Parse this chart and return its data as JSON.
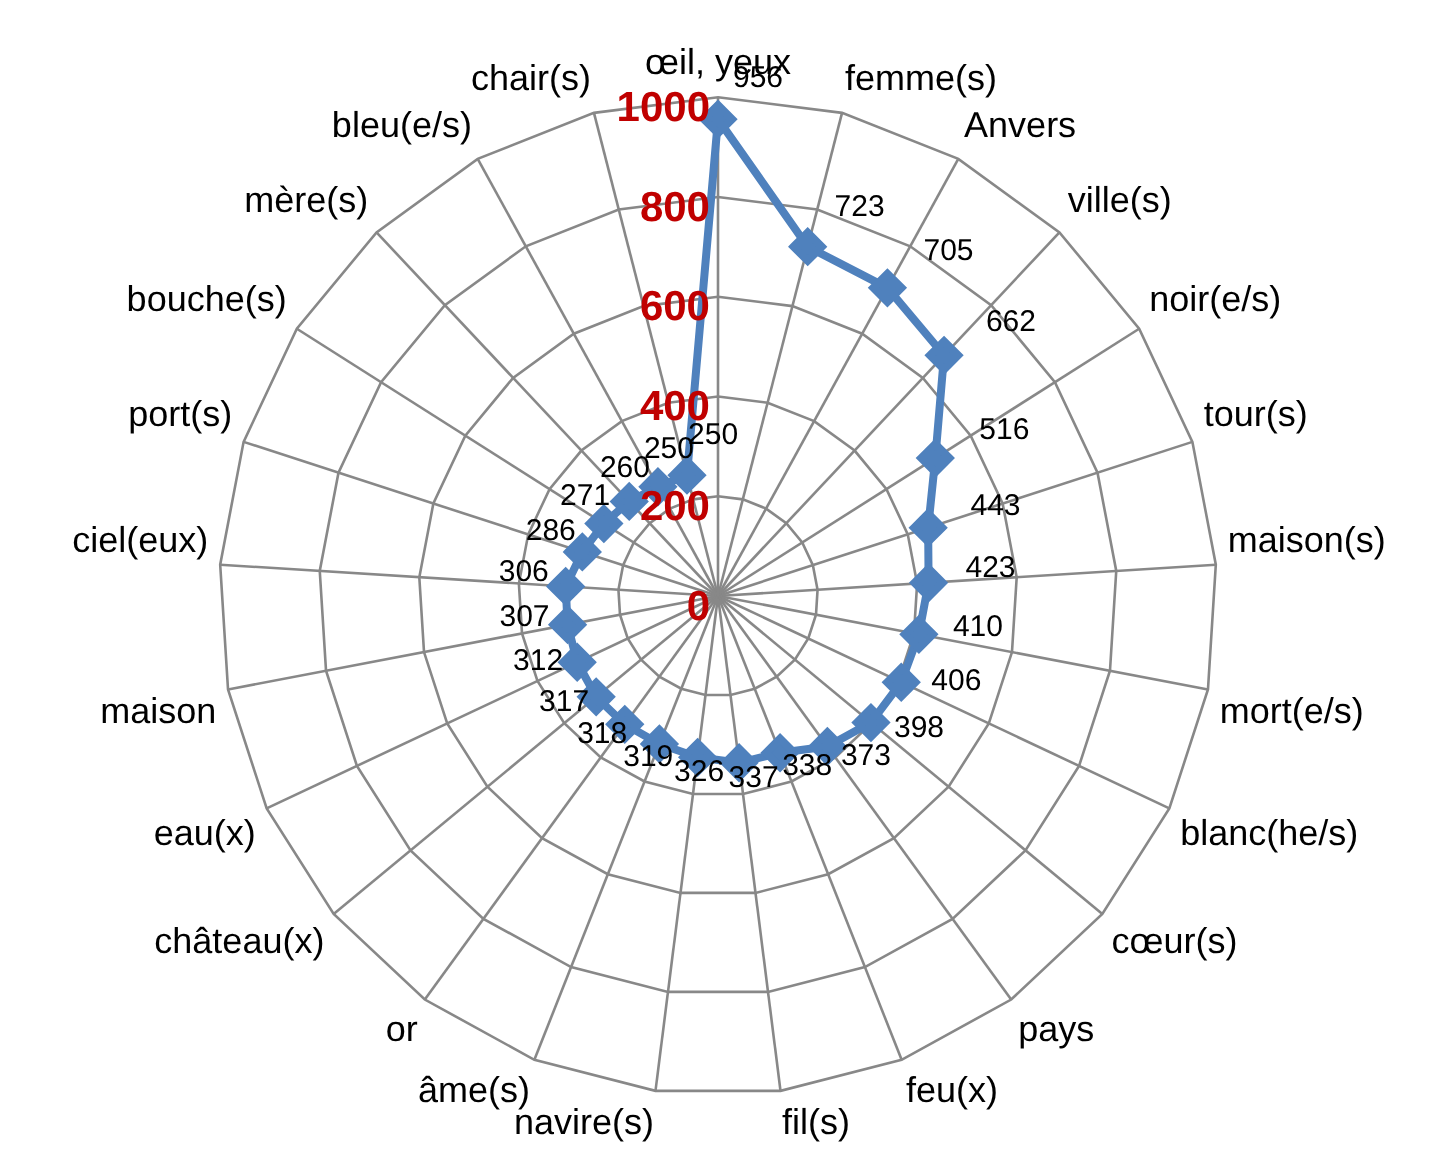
{
  "chart_data": {
    "type": "radar",
    "categories": [
      "œil, yeux",
      "femme(s)",
      "Anvers",
      "ville(s)",
      "noir(e/s)",
      "tour(s)",
      "maison(s)",
      "mort(e/s)",
      "blanc(he/s)",
      "cœur(s)",
      "pays",
      "feu(x)",
      "fil(s)",
      "navire(s)",
      "âme(s)",
      "or",
      "château(x)",
      "eau(x)",
      "maison",
      "ciel(eux)",
      "port(s)",
      "bouche(s)",
      "mère(s)",
      "bleu(e/s)",
      "chair(s)"
    ],
    "series": [
      {
        "color": "#4f81bd",
        "values": [
          956,
          723,
          705,
          662,
          516,
          443,
          423,
          410,
          406,
          398,
          373,
          338,
          337,
          326,
          319,
          318,
          317,
          312,
          307,
          306,
          286,
          271,
          260,
          250,
          250
        ]
      }
    ],
    "ylim": [
      0,
      1000
    ],
    "yticks": [
      0,
      200,
      400,
      600,
      800,
      1000
    ],
    "grid": true,
    "marker": "diamond",
    "data_labels": true
  }
}
